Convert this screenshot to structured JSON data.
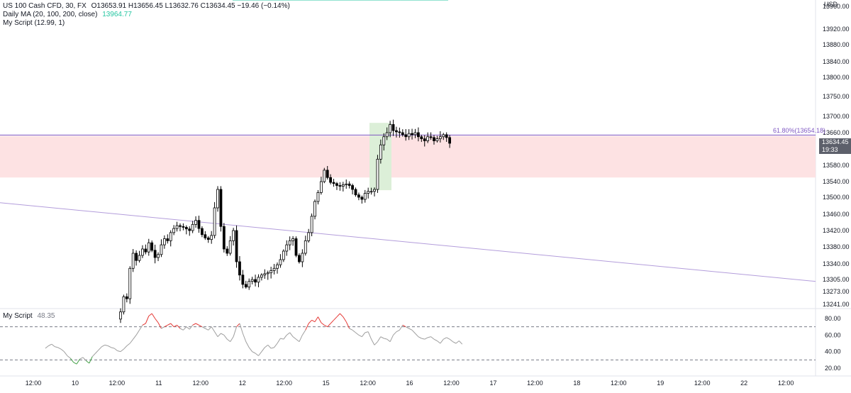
{
  "legend": {
    "main": {
      "symbol": "US 100 Cash CFD, 30, FX",
      "ohlc": "O13653.91 H13656.45 L13632.76 C13634.45 −19.46 (−0.14%)"
    },
    "ma": {
      "label": "Daily MA (20, 100, 200, close)",
      "value": "13964.77"
    },
    "script": {
      "label": "My Script (12.99, 1)"
    },
    "osc": {
      "label": "My Script",
      "value": "48.35"
    }
  },
  "price_tag": {
    "price": "13634.45",
    "countdown": "19:33"
  },
  "fib_label": "61.80%(13654.18)",
  "currency": "USD",
  "colors": {
    "bull": "#000000",
    "bear": "#000000",
    "zone_red": "#fde2e3",
    "zone_green": "#dcefd8",
    "fib_line": "#7e57c2",
    "trend_line": "#b39ddb",
    "ma_line": "#26c6a2",
    "osc_normal": "#9e9e9e",
    "osc_high": "#e53935",
    "osc_low": "#43a047"
  },
  "chart_data": [
    {
      "type": "candlestick",
      "title": "US 100 Cash CFD, 30, FX",
      "price_axis": {
        "ticks": [
          13960,
          13920,
          13880,
          13840,
          13800,
          13750,
          13700,
          13660,
          13620,
          13580,
          13540,
          13500,
          13460,
          13420,
          13380,
          13340,
          13305,
          13273,
          13241
        ],
        "tick_labels": [
          "13960.00",
          "13920.00",
          "13880.00",
          "13840.00",
          "13800.00",
          "13750.00",
          "13700.00",
          "13660.00",
          "13620.00",
          "13580.00",
          "13540.00",
          "13500.00",
          "13460.00",
          "13420.00",
          "13380.00",
          "13340.00",
          "13305.00",
          "13273.00",
          "13241.00"
        ]
      },
      "time_axis": {
        "labels": [
          "12:00",
          "10",
          "12:00",
          "11",
          "12:00",
          "12",
          "12:00",
          "15",
          "12:00",
          "16",
          "12:00",
          "17",
          "12:00",
          "18",
          "12:00",
          "19",
          "12:00",
          "22",
          "12:00"
        ]
      },
      "last_price": 13634.45,
      "fib_level": {
        "label": "61.80%",
        "price": 13654.18
      },
      "supply_zone": {
        "top": 13652,
        "bottom": 13550
      },
      "breakout_zone": {
        "top": 13684,
        "bottom": 13518
      },
      "trend_line": {
        "start_price": 13487,
        "end_price": 13300
      },
      "ma_segments": [
        {
          "price": 14020,
          "slot_from": 0,
          "slot_to": 52
        },
        {
          "price": 14002,
          "slot_from": 52,
          "slot_to": 66
        },
        {
          "price": 13994,
          "slot_from": 66,
          "slot_to": 85
        }
      ],
      "candles_close": [
        13222,
        13260,
        13255,
        13330,
        13365,
        13348,
        13360,
        13375,
        13368,
        13390,
        13372,
        13355,
        13362,
        13385,
        13400,
        13395,
        13415,
        13425,
        13432,
        13430,
        13428,
        13424,
        13420,
        13435,
        13445,
        13425,
        13410,
        13402,
        13398,
        13408,
        13475,
        13520,
        13430,
        13375,
        13365,
        13395,
        13420,
        13345,
        13315,
        13292,
        13285,
        13300,
        13305,
        13298,
        13310,
        13315,
        13318,
        13320,
        13325,
        13330,
        13338,
        13350,
        13370,
        13385,
        13395,
        13400,
        13360,
        13345,
        13365,
        13395,
        13415,
        13455,
        13490,
        13512,
        13540,
        13568,
        13550,
        13538,
        13535,
        13530,
        13528,
        13532,
        13534,
        13530,
        13520,
        13506,
        13500,
        13495,
        13510,
        13515,
        13515,
        13520,
        13595,
        13630,
        13650,
        13660,
        13680,
        13665,
        13662,
        13660,
        13655,
        13650,
        13658,
        13655,
        13660,
        13650,
        13645,
        13640,
        13650,
        13648,
        13640,
        13645,
        13650,
        13655,
        13648,
        13634
      ]
    },
    {
      "type": "line",
      "title": "My Script",
      "last_value": 48.35,
      "y_ticks": [
        80,
        60,
        40,
        20
      ],
      "y_tick_labels": [
        "80.00",
        "60.00",
        "40.00",
        "20.00"
      ],
      "levels": [
        70,
        30
      ],
      "start_slot": -24,
      "values": [
        44,
        47,
        49,
        46,
        45,
        43,
        40,
        35,
        32,
        27,
        25,
        31,
        33,
        29,
        26,
        34,
        38,
        42,
        46,
        48,
        47,
        45,
        44,
        41,
        40,
        43,
        47,
        50,
        55,
        60,
        66,
        72,
        74,
        83,
        86,
        80,
        75,
        68,
        70,
        72,
        74,
        70,
        72,
        68,
        66,
        70,
        67,
        72,
        74,
        72,
        70,
        68,
        66,
        70,
        64,
        58,
        62,
        60,
        55,
        52,
        58,
        70,
        74,
        62,
        52,
        45,
        40,
        38,
        35,
        40,
        45,
        48,
        44,
        45,
        50,
        56,
        55,
        60,
        63,
        58,
        55,
        52,
        60,
        66,
        74,
        78,
        76,
        82,
        75,
        72,
        70,
        74,
        78,
        82,
        86,
        82,
        76,
        68,
        66,
        63,
        60,
        58,
        63,
        64,
        55,
        48,
        52,
        58,
        56,
        55,
        52,
        60,
        64,
        66,
        72,
        70,
        68,
        66,
        62,
        58,
        56,
        55,
        57,
        58,
        55,
        53,
        50,
        55,
        57,
        55,
        52,
        50,
        53,
        49
      ]
    }
  ]
}
